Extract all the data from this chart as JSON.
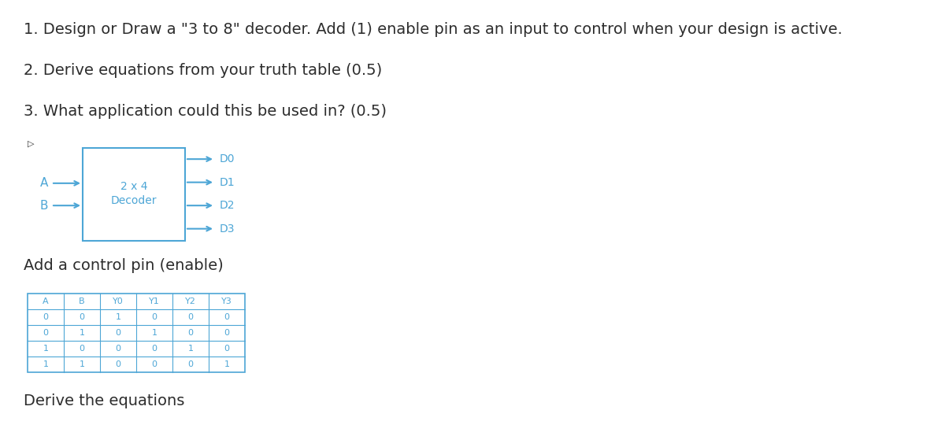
{
  "bg_color": "#ffffff",
  "text_color": "#2d2d2d",
  "cyan_color": "#4da6d6",
  "line1": "1. Design or Draw a \"3 to 8\" decoder. Add (1) enable pin as an input to control when your design is active.",
  "line2": "2. Derive equations from your truth table (0.5)",
  "line3": "3. What application could this be used in? (0.5)",
  "add_control": "Add a control pin (enable)",
  "derive": "Derive the equations",
  "decoder_label1": "2 x 4",
  "decoder_label2": "Decoder",
  "input_A": "A",
  "input_B": "B",
  "outputs": [
    "D0",
    "D1",
    "D2",
    "D3"
  ],
  "table_headers": [
    "A",
    "B",
    "Y0",
    "Y1",
    "Y2",
    "Y3"
  ],
  "table_rows": [
    [
      0,
      0,
      1,
      0,
      0,
      0
    ],
    [
      0,
      1,
      0,
      1,
      0,
      0
    ],
    [
      1,
      0,
      0,
      0,
      1,
      0
    ],
    [
      1,
      1,
      0,
      0,
      0,
      1
    ]
  ]
}
